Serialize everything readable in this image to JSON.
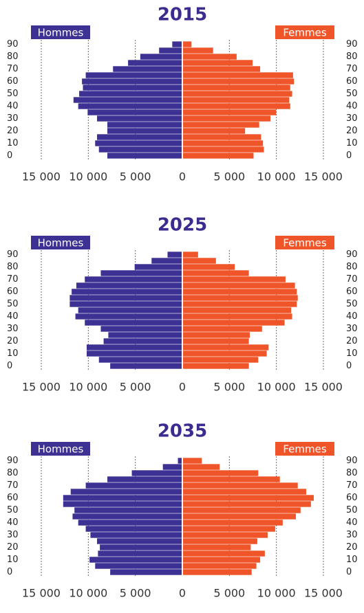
{
  "chart_data": [
    {
      "type": "pyramid",
      "title": "2015",
      "categories": [
        "0",
        null,
        "10",
        null,
        "20",
        null,
        "30",
        null,
        "40",
        null,
        "50",
        null,
        "60",
        null,
        "70",
        null,
        "80",
        null,
        "90"
      ],
      "series": [
        {
          "name": "Hommes",
          "color": "#3d3293",
          "values": [
            7900,
            8800,
            9200,
            9000,
            7900,
            7900,
            9000,
            10000,
            11000,
            11500,
            10900,
            10500,
            10600,
            10200,
            7300,
            5700,
            4400,
            2400,
            1000
          ]
        },
        {
          "name": "Femmes",
          "color": "#f0552a",
          "values": [
            7500,
            8600,
            8500,
            8300,
            6600,
            8100,
            9300,
            9900,
            11400,
            11300,
            11600,
            11400,
            11800,
            11700,
            8200,
            7400,
            5700,
            3200,
            900
          ]
        }
      ],
      "xlim": [
        0,
        15000
      ],
      "xticks": [
        0,
        {
          "value": 5000,
          "label": "5 000"
        },
        {
          "value": 10000,
          "label": "10 000"
        },
        {
          "value": 15000,
          "label": "15 000"
        }
      ],
      "grid": true
    },
    {
      "type": "pyramid",
      "title": "2025",
      "categories": [
        "0",
        null,
        "10",
        null,
        "20",
        null,
        "30",
        null,
        "40",
        null,
        "50",
        null,
        "60",
        null,
        "70",
        null,
        "80",
        null,
        "90"
      ],
      "series": [
        {
          "name": "Hommes",
          "color": "#3d3293",
          "values": [
            7600,
            8800,
            10100,
            10100,
            8300,
            7800,
            8600,
            10300,
            11300,
            11000,
            11900,
            11900,
            11700,
            11200,
            10300,
            8600,
            5000,
            3200,
            1500
          ]
        },
        {
          "name": "Femmes",
          "color": "#f0552a",
          "values": [
            7000,
            8000,
            8900,
            9100,
            7000,
            7100,
            8400,
            10800,
            11600,
            11500,
            12100,
            12200,
            12100,
            11900,
            10900,
            7000,
            5500,
            3500,
            1600
          ]
        }
      ],
      "xlim": [
        0,
        15000
      ],
      "xticks": [
        0,
        {
          "value": 5000,
          "label": "5 000"
        },
        {
          "value": 10000,
          "label": "10 000"
        },
        {
          "value": 15000,
          "label": "15 000"
        }
      ],
      "grid": true
    },
    {
      "type": "pyramid",
      "title": "2035",
      "categories": [
        "0",
        null,
        "10",
        null,
        "20",
        null,
        "30",
        null,
        "40",
        null,
        "50",
        null,
        "60",
        null,
        "70",
        null,
        "80",
        null,
        "90"
      ],
      "series": [
        {
          "name": "Hommes",
          "color": "#3d3293",
          "values": [
            7600,
            9200,
            9800,
            8900,
            8700,
            9000,
            9700,
            10200,
            11000,
            11600,
            11400,
            12600,
            12600,
            11800,
            10200,
            7900,
            5300,
            2000,
            400
          ]
        },
        {
          "name": "Femmes",
          "color": "#f0552a",
          "values": [
            7300,
            7800,
            8200,
            8700,
            7200,
            7900,
            9000,
            9800,
            10600,
            12000,
            12500,
            13600,
            13900,
            13100,
            12200,
            10300,
            8000,
            3900,
            2000
          ]
        }
      ],
      "xlim": [
        0,
        15000
      ],
      "xticks": [
        0,
        {
          "value": 5000,
          "label": "5 000"
        },
        {
          "value": 10000,
          "label": "10 000"
        },
        {
          "value": 15000,
          "label": "15 000"
        }
      ],
      "grid": true
    }
  ]
}
